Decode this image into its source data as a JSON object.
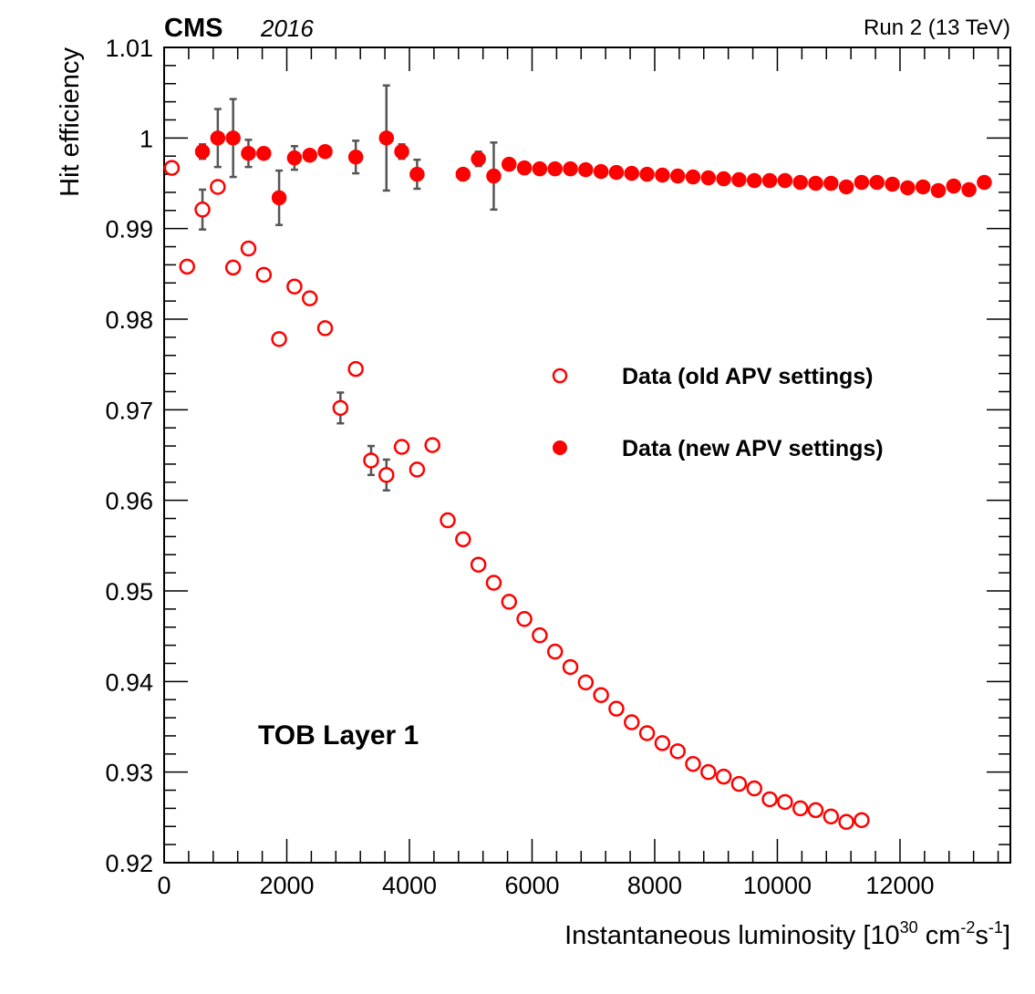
{
  "header": {
    "experiment": "CMS",
    "year": "2016",
    "run_label": "Run 2 (13 TeV)"
  },
  "annotation": "TOB Layer 1",
  "colors": {
    "marker": "#ff0000",
    "errorbar": "#555555",
    "axis": "#000000"
  },
  "chart_data": {
    "type": "scatter",
    "title": "",
    "xlabel": {
      "main": "Instantaneous luminosity [10",
      "exp1": "30",
      "unit": " cm",
      "exp2": "-2",
      "s": "s",
      "exp3": "-1",
      "close": "]"
    },
    "ylabel": "Hit efficiency",
    "xlim": [
      0,
      13800
    ],
    "ylim": [
      0.92,
      1.01
    ],
    "x_ticks": [
      0,
      2000,
      4000,
      6000,
      8000,
      10000,
      12000
    ],
    "x_tick_labels": [
      "0",
      "2000",
      "4000",
      "6000",
      "8000",
      "10000",
      "12000"
    ],
    "y_ticks": [
      0.92,
      0.93,
      0.94,
      0.95,
      0.96,
      0.97,
      0.98,
      0.99,
      1,
      1.01
    ],
    "y_tick_labels": [
      "0.92",
      "0.93",
      "0.94",
      "0.95",
      "0.96",
      "0.97",
      "0.98",
      "0.99",
      "1",
      "1.01"
    ],
    "legend": {
      "position": "center-right",
      "entries": [
        "Data (old APV settings)",
        "Data (new APV settings)"
      ]
    },
    "series": [
      {
        "name": "Data (old APV settings)",
        "marker": "open-circle",
        "x": [
          125,
          375,
          625,
          875,
          1125,
          1375,
          1625,
          1875,
          2125,
          2375,
          2625,
          2875,
          3125,
          3375,
          3625,
          3875,
          4125,
          4375,
          4625,
          4875,
          5125,
          5375,
          5625,
          5875,
          6125,
          6375,
          6625,
          6875,
          7125,
          7375,
          7625,
          7875,
          8125,
          8375,
          8625,
          8875,
          9125,
          9375,
          9625,
          9875,
          10125,
          10375,
          10625,
          10875,
          11125,
          11375
        ],
        "y": [
          0.9967,
          0.9858,
          0.9921,
          0.9946,
          0.9857,
          0.9878,
          0.9849,
          0.9778,
          0.9836,
          0.9823,
          0.979,
          0.9702,
          0.9745,
          0.9644,
          0.9628,
          0.9659,
          0.9634,
          0.9661,
          0.9578,
          0.9557,
          0.9529,
          0.9509,
          0.9488,
          0.9469,
          0.9451,
          0.9433,
          0.9416,
          0.9399,
          0.9385,
          0.937,
          0.9355,
          0.9343,
          0.9332,
          0.9323,
          0.9309,
          0.93,
          0.9295,
          0.9287,
          0.9282,
          0.927,
          0.9267,
          0.926,
          0.9258,
          0.9251,
          0.9245,
          0.9247
        ],
        "err": [
          0,
          0,
          0.0022,
          0,
          0,
          0,
          0,
          0,
          0,
          0,
          0,
          0.0017,
          0,
          0.0016,
          0.0017,
          0,
          0,
          0,
          0,
          0,
          0,
          0,
          0,
          0,
          0,
          0,
          0,
          0,
          0,
          0,
          0,
          0,
          0,
          0,
          0,
          0,
          0,
          0,
          0,
          0,
          0,
          0,
          0,
          0,
          0,
          0
        ]
      },
      {
        "name": "Data (new APV settings)",
        "marker": "filled-circle",
        "x": [
          625,
          875,
          1125,
          1375,
          1625,
          1875,
          2125,
          2375,
          2625,
          3125,
          3625,
          3875,
          4125,
          4875,
          5125,
          5375,
          5625,
          5875,
          6125,
          6375,
          6625,
          6875,
          7125,
          7375,
          7625,
          7875,
          8125,
          8375,
          8625,
          8875,
          9125,
          9375,
          9625,
          9875,
          10125,
          10375,
          10625,
          10875,
          11125,
          11375,
          11625,
          11875,
          12125,
          12375,
          12625,
          12875,
          13125,
          13375
        ],
        "y": [
          0.9985,
          1.0,
          1.0,
          0.9983,
          0.9983,
          0.9934,
          0.9978,
          0.9981,
          0.9985,
          0.9979,
          1.0,
          0.9985,
          0.996,
          0.996,
          0.9977,
          0.9958,
          0.9971,
          0.9967,
          0.9966,
          0.9966,
          0.9966,
          0.9965,
          0.9963,
          0.9962,
          0.9961,
          0.996,
          0.9959,
          0.9958,
          0.9957,
          0.9956,
          0.9955,
          0.9954,
          0.9953,
          0.9953,
          0.9953,
          0.9951,
          0.995,
          0.995,
          0.9946,
          0.9951,
          0.9951,
          0.9949,
          0.9945,
          0.9946,
          0.9942,
          0.9947,
          0.9943,
          0.9951
        ],
        "err": [
          0.0008,
          0.0032,
          0.0043,
          0.0015,
          0,
          0.003,
          0.0013,
          0,
          0,
          0.0018,
          0.0058,
          0.0008,
          0.0016,
          0,
          0.0008,
          0.0037,
          0,
          0,
          0,
          0,
          0,
          0,
          0,
          0,
          0,
          0,
          0,
          0,
          0,
          0,
          0,
          0,
          0,
          0,
          0,
          0,
          0,
          0,
          0,
          0,
          0,
          0,
          0,
          0,
          0,
          0,
          0,
          0
        ]
      }
    ]
  }
}
